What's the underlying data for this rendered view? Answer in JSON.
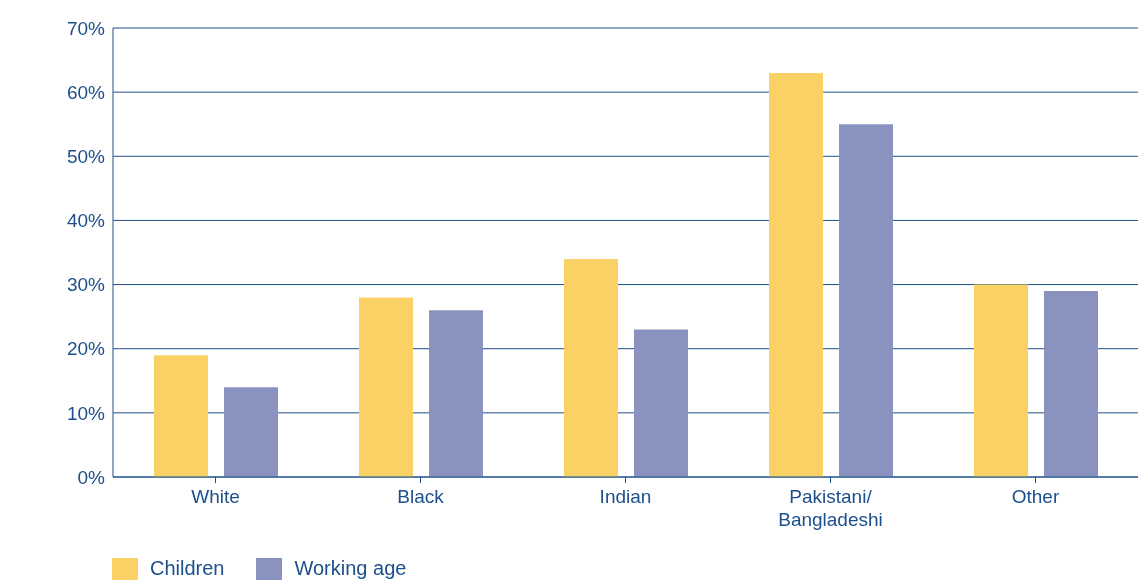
{
  "chart_data": {
    "type": "bar",
    "categories": [
      "White",
      "Black",
      "Indian",
      "Pakistani/ Bangladeshi",
      "Other"
    ],
    "series": [
      {
        "name": "Children",
        "color": "#f9d164",
        "values": [
          19,
          28,
          34,
          63,
          30
        ]
      },
      {
        "name": "Working age",
        "color": "#8a93bf",
        "values": [
          14,
          26,
          23,
          55,
          29
        ]
      }
    ],
    "ylim": [
      0,
      70
    ],
    "yticks": [
      {
        "value": 0,
        "label": "0%"
      },
      {
        "value": 10,
        "label": "10%"
      },
      {
        "value": 20,
        "label": "20%"
      },
      {
        "value": 30,
        "label": "30%"
      },
      {
        "value": 40,
        "label": "40%"
      },
      {
        "value": 50,
        "label": "50%"
      },
      {
        "value": 60,
        "label": "60%"
      },
      {
        "value": 70,
        "label": "70%"
      }
    ],
    "grid": "y",
    "legend": "bottom left"
  }
}
